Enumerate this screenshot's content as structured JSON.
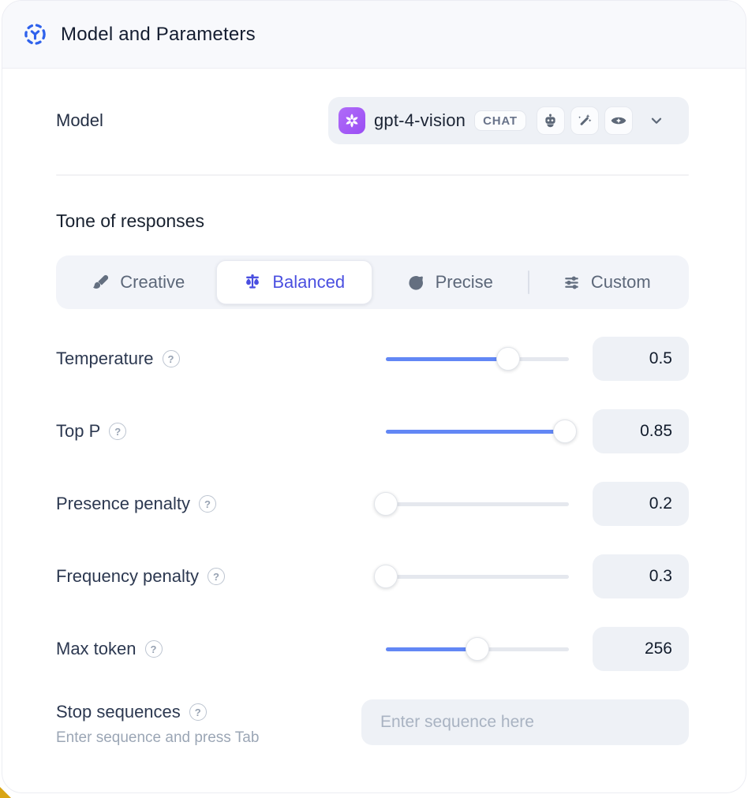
{
  "header": {
    "title": "Model and Parameters"
  },
  "model_row": {
    "label": "Model",
    "selected_model": "gpt-4-vision",
    "badge": "CHAT",
    "capabilities": [
      "robot",
      "magic-wand",
      "vision"
    ]
  },
  "tone": {
    "heading": "Tone of responses",
    "options": [
      {
        "label": "Creative",
        "icon": "paintbrush-icon",
        "selected": false
      },
      {
        "label": "Balanced",
        "icon": "balance-scale-icon",
        "selected": true
      },
      {
        "label": "Precise",
        "icon": "target-icon",
        "selected": false
      },
      {
        "label": "Custom",
        "icon": "sliders-icon",
        "selected": false
      }
    ]
  },
  "parameters": [
    {
      "label": "Temperature",
      "value": "0.5",
      "slider_percent": 67
    },
    {
      "label": "Top P",
      "value": "0.85",
      "slider_percent": 98
    },
    {
      "label": "Presence penalty",
      "value": "0.2",
      "slider_percent": 0
    },
    {
      "label": "Frequency penalty",
      "value": "0.3",
      "slider_percent": 0
    },
    {
      "label": "Max token",
      "value": "256",
      "slider_percent": 50
    }
  ],
  "stop_sequences": {
    "label": "Stop sequences",
    "hint": "Enter sequence and press Tab",
    "placeholder": "Enter sequence here",
    "value": ""
  },
  "help_glyph": "?",
  "colors": {
    "accent_indigo": "#4a4fe0",
    "slider_blue": "#6287f5",
    "header_icon_blue": "#2f62ec",
    "openai_purple": "#9a4df4",
    "corner_accent_yellow": "#d9a514",
    "panel_gray": "#eef1f6"
  }
}
